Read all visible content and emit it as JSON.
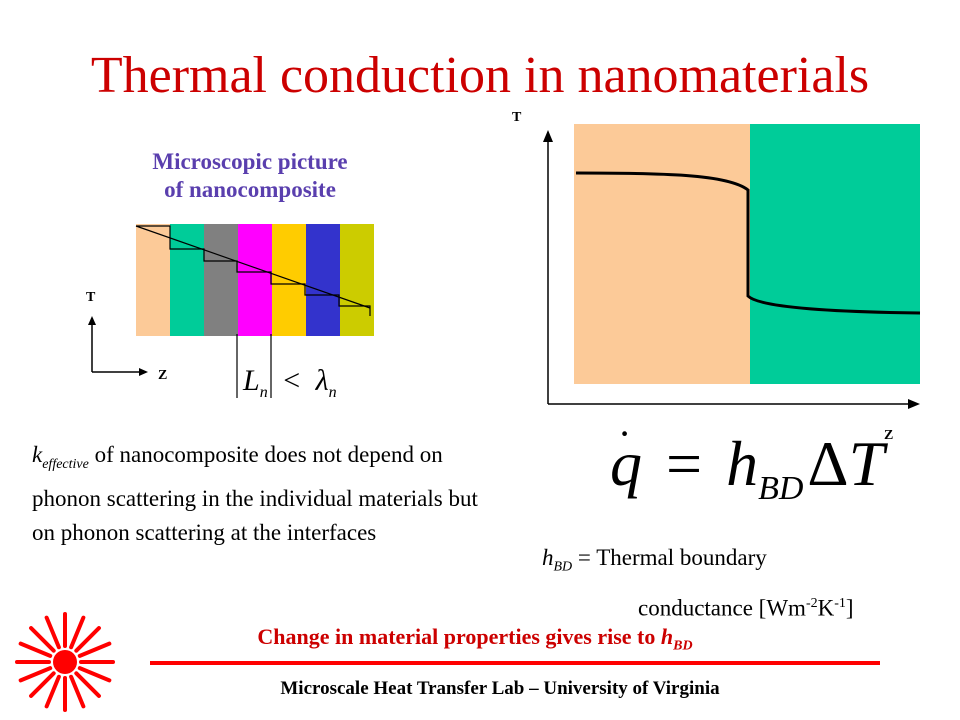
{
  "slide": {
    "title": "Thermal conduction in nanomaterials",
    "nano_caption_line1": "Microscopic picture",
    "nano_caption_line2": "of nanocomposite",
    "small_axis_y": "T",
    "small_axis_x": "Z",
    "length_relation": {
      "L": "L",
      "L_sub": "n",
      "op": "<",
      "lambda": "λ",
      "lambda_sub": "n"
    },
    "k_symbol": "k",
    "k_subscript": "effective",
    "k_text_rest": " of nanocomposite  does not depend on phonon scattering in the individual materials but on phonon scattering at the interfaces",
    "big_axis_y": "T",
    "big_axis_x": "Z",
    "equation": {
      "q": "q",
      "equals": "=",
      "h": "h",
      "h_sub": "BD",
      "delta": "Δ",
      "T": "T"
    },
    "hbd_symbol": "h",
    "hbd_subscript": "BD",
    "hbd_text": " = Thermal boundary",
    "hbd_text2": "conductance [Wm",
    "hbd_exp1": "-2",
    "hbd_text3": "K",
    "hbd_exp2": "-1",
    "hbd_text4": "]",
    "conclusion_text": "Change in material properties gives rise to ",
    "conclusion_symbol": "h",
    "conclusion_subscript": "BD",
    "footer": "Microscale Heat Transfer Lab – University of Virginia"
  },
  "colors": {
    "title": "#cc0000",
    "caption": "#5a3fae",
    "layer_colors": [
      "#fcca98",
      "#00cc99",
      "#808080",
      "#ff00ff",
      "#ffcc00",
      "#3333cc",
      "#cccc00"
    ],
    "material_left": "#fcca98",
    "material_right": "#00cc99",
    "logo": "#ff0000"
  },
  "icons": {
    "logo": "red-starburst-logo"
  }
}
